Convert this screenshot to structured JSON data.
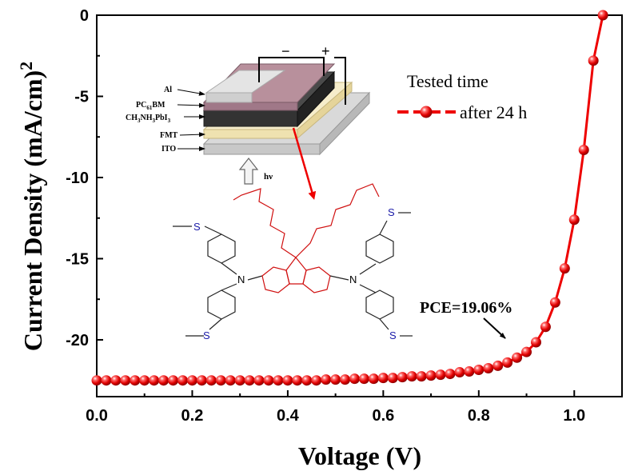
{
  "chart_data": {
    "type": "line",
    "title": "",
    "xlabel": "Voltage (V)",
    "ylabel": "Current Density (mA/cm)",
    "ylabel_superscript": "2",
    "xlim": [
      0.0,
      1.1
    ],
    "ylim": [
      -23.5,
      0
    ],
    "xticks": [
      0.0,
      0.2,
      0.4,
      0.6,
      0.8,
      1.0
    ],
    "xtick_labels": [
      "0.0",
      "0.2",
      "0.4",
      "0.6",
      "0.8",
      "1.0"
    ],
    "yticks": [
      0,
      -5,
      -10,
      -15,
      -20
    ],
    "ytick_labels": [
      "0",
      "-5",
      "-10",
      "-15",
      "-20"
    ],
    "grid": false,
    "legend": {
      "title": "Tested time",
      "placement": "top-right"
    },
    "series": [
      {
        "name": "after 24 h",
        "color": "#ee0000",
        "marker": "sphere",
        "x": [
          0.0,
          0.02,
          0.04,
          0.06,
          0.08,
          0.1,
          0.12,
          0.14,
          0.16,
          0.18,
          0.2,
          0.22,
          0.24,
          0.26,
          0.28,
          0.3,
          0.32,
          0.34,
          0.36,
          0.38,
          0.4,
          0.42,
          0.44,
          0.46,
          0.48,
          0.5,
          0.52,
          0.54,
          0.56,
          0.58,
          0.6,
          0.62,
          0.64,
          0.66,
          0.68,
          0.7,
          0.72,
          0.74,
          0.76,
          0.78,
          0.8,
          0.82,
          0.84,
          0.86,
          0.88,
          0.9,
          0.92,
          0.94,
          0.96,
          0.98,
          1.0,
          1.02,
          1.04,
          1.06
        ],
        "y": [
          -22.5,
          -22.5,
          -22.5,
          -22.5,
          -22.5,
          -22.5,
          -22.5,
          -22.5,
          -22.5,
          -22.5,
          -22.5,
          -22.5,
          -22.5,
          -22.5,
          -22.5,
          -22.5,
          -22.5,
          -22.5,
          -22.5,
          -22.5,
          -22.5,
          -22.5,
          -22.5,
          -22.5,
          -22.45,
          -22.45,
          -22.45,
          -22.4,
          -22.4,
          -22.4,
          -22.35,
          -22.35,
          -22.3,
          -22.25,
          -22.25,
          -22.2,
          -22.15,
          -22.1,
          -22.0,
          -21.95,
          -21.85,
          -21.75,
          -21.6,
          -21.4,
          -21.1,
          -20.75,
          -20.15,
          -19.2,
          -17.7,
          -15.6,
          -12.6,
          -8.3,
          -2.8,
          0.0
        ]
      }
    ],
    "annotations": [
      {
        "text": "PCE=19.06%"
      }
    ]
  },
  "inset": {
    "device_layers": [
      "Al",
      "PC",
      "61",
      "BM",
      "CH",
      "3",
      "NH",
      "3",
      "PbI",
      "3",
      "FMT",
      "ITO"
    ],
    "light_label": "hν",
    "minus": "−",
    "plus": "+",
    "molecule_atoms": {
      "sulfur": "S",
      "nitrogen": "N"
    }
  },
  "colors": {
    "curve": "#ee0000",
    "axes": "#000000",
    "core": "#d01010",
    "sulfur": "#1a1aa8"
  }
}
